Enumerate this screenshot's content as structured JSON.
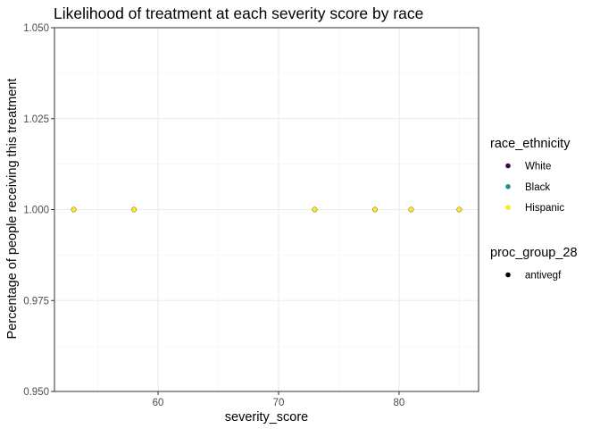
{
  "chart_data": {
    "type": "scatter",
    "title": "Likelihood of treatment at each severity score by race",
    "xlabel": "severity_score",
    "ylabel": "Percentage of people receiving this treatment",
    "xlim": [
      51.4,
      86.6
    ],
    "ylim": [
      0.95,
      1.05
    ],
    "x_ticks": [
      60,
      70,
      80
    ],
    "y_ticks": [
      0.95,
      0.975,
      1.0,
      1.025,
      1.05
    ],
    "y_tick_labels": [
      "0.950",
      "0.975",
      "1.000",
      "1.025",
      "1.050"
    ],
    "grid": true,
    "series": [
      {
        "name": "Hispanic",
        "color": "#FDE725",
        "points": [
          {
            "x": 53,
            "y": 1.0
          },
          {
            "x": 58,
            "y": 1.0
          },
          {
            "x": 73,
            "y": 1.0
          },
          {
            "x": 78,
            "y": 1.0
          },
          {
            "x": 81,
            "y": 1.0
          },
          {
            "x": 85,
            "y": 1.0
          }
        ]
      }
    ],
    "legends": [
      {
        "title": "race_ethnicity",
        "entries": [
          {
            "label": "White",
            "color": "#440154"
          },
          {
            "label": "Black",
            "color": "#21908C"
          },
          {
            "label": "Hispanic",
            "color": "#FDE725"
          }
        ]
      },
      {
        "title": "proc_group_28",
        "entries": [
          {
            "label": "antivegf",
            "color": "#000000"
          }
        ]
      }
    ],
    "legend_position": "right"
  }
}
